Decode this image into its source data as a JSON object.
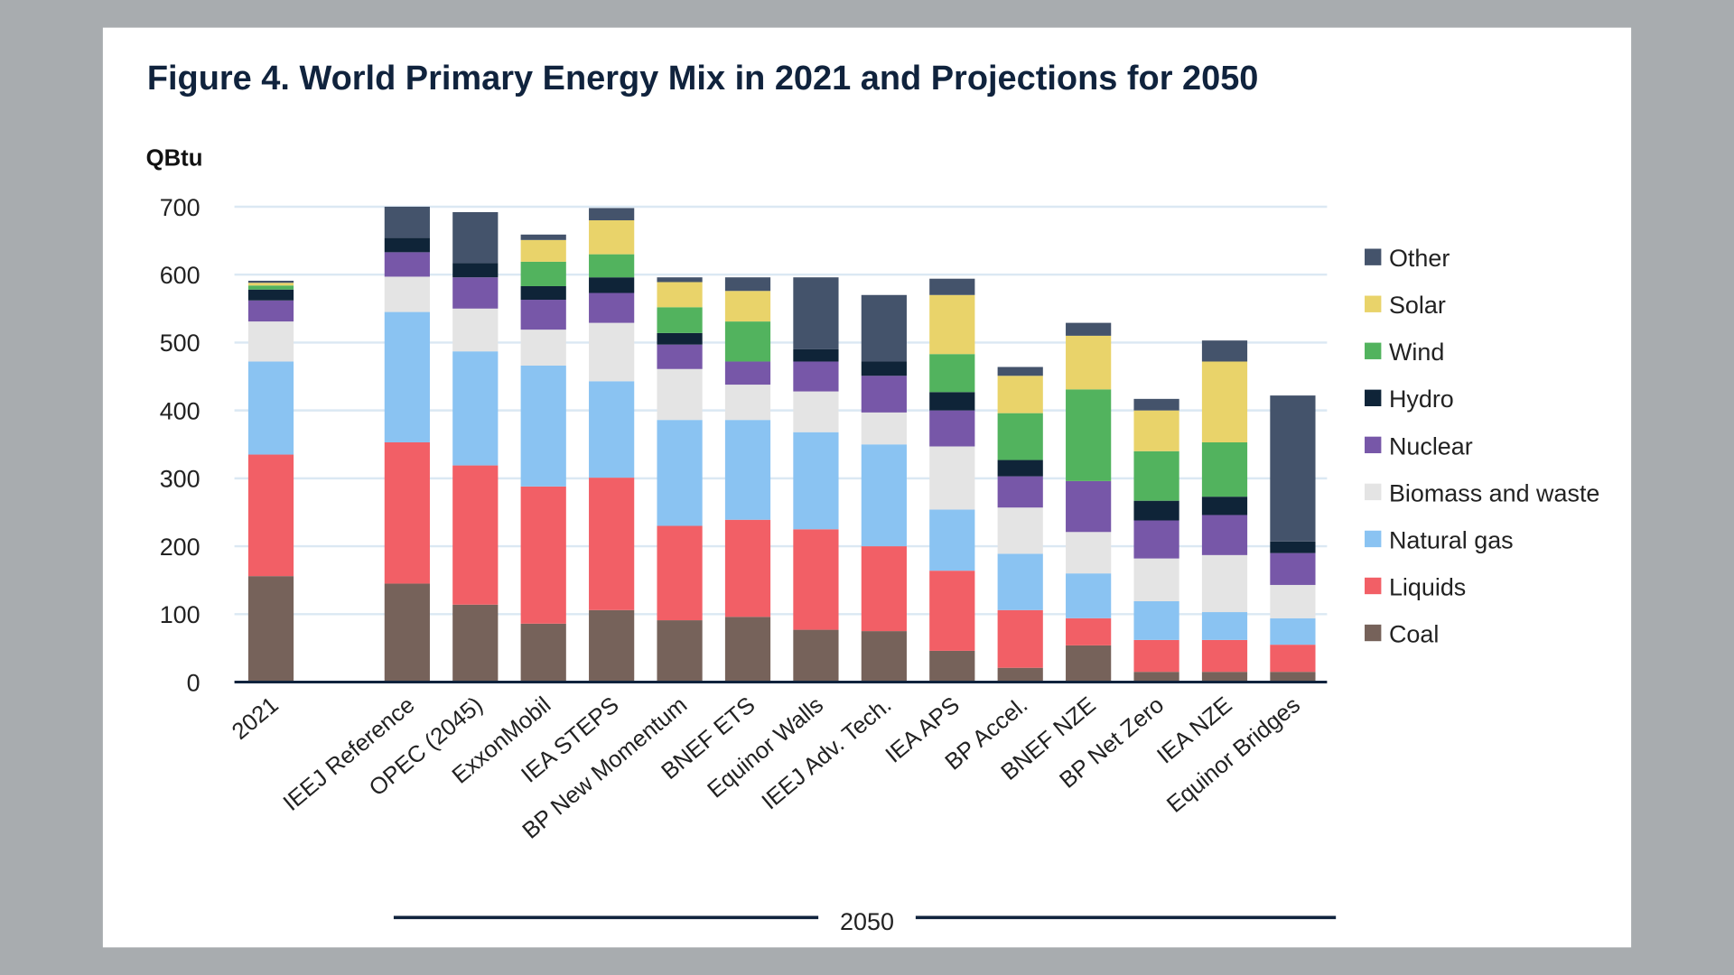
{
  "chart_data": {
    "type": "bar",
    "stacked": true,
    "title": "Figure 4.  World Primary Energy Mix in 2021 and Projections for 2050",
    "ylabel": "QBtu",
    "ylim": [
      0,
      700
    ],
    "yticks": [
      0,
      100,
      200,
      300,
      400,
      500,
      600,
      700
    ],
    "grid": true,
    "legend_position": "right",
    "group_label": "2050",
    "categories": [
      "2021",
      "IEEJ Reference",
      "OPEC (2045)",
      "ExxonMobil",
      "IEA STEPS",
      "BP New Momentum",
      "BNEF ETS",
      "Equinor Walls",
      "IEEJ Adv. Tech.",
      "IEA APS",
      "BP Accel.",
      "BNEF NZE",
      "BP Net Zero",
      "IEA NZE",
      "Equinor Bridges"
    ],
    "series": [
      {
        "name": "Coal",
        "color": "#76625a",
        "values": [
          156,
          145,
          114,
          86,
          106,
          91,
          96,
          77,
          75,
          46,
          21,
          54,
          15,
          15,
          15
        ]
      },
      {
        "name": "Liquids",
        "color": "#f25f66",
        "values": [
          179,
          208,
          205,
          202,
          195,
          139,
          143,
          148,
          125,
          118,
          85,
          40,
          47,
          47,
          40
        ]
      },
      {
        "name": "Natural gas",
        "color": "#8ac3f2",
        "values": [
          137,
          192,
          168,
          178,
          142,
          156,
          147,
          143,
          150,
          90,
          83,
          66,
          57,
          41,
          39
        ]
      },
      {
        "name": "Biomass and waste",
        "color": "#e4e4e4",
        "values": [
          59,
          52,
          63,
          53,
          86,
          75,
          52,
          60,
          47,
          93,
          68,
          61,
          63,
          84,
          49
        ]
      },
      {
        "name": "Nuclear",
        "color": "#7757a8",
        "values": [
          31,
          36,
          46,
          44,
          44,
          36,
          34,
          44,
          54,
          53,
          46,
          75,
          56,
          59,
          47
        ]
      },
      {
        "name": "Hydro",
        "color": "#0f2438",
        "values": [
          16,
          21,
          21,
          20,
          23,
          17,
          0,
          18,
          21,
          27,
          24,
          0,
          29,
          27,
          17
        ]
      },
      {
        "name": "Wind",
        "color": "#52b35e",
        "values": [
          6,
          0,
          0,
          36,
          34,
          38,
          59,
          0,
          0,
          56,
          69,
          135,
          73,
          80,
          0
        ]
      },
      {
        "name": "Solar",
        "color": "#e9d36a",
        "values": [
          4,
          0,
          0,
          32,
          50,
          37,
          45,
          0,
          0,
          87,
          55,
          79,
          60,
          119,
          0
        ]
      },
      {
        "name": "Other",
        "color": "#44536b",
        "values": [
          3,
          46,
          75,
          8,
          18,
          7,
          20,
          106,
          98,
          24,
          13,
          19,
          17,
          31,
          215
        ]
      }
    ]
  }
}
